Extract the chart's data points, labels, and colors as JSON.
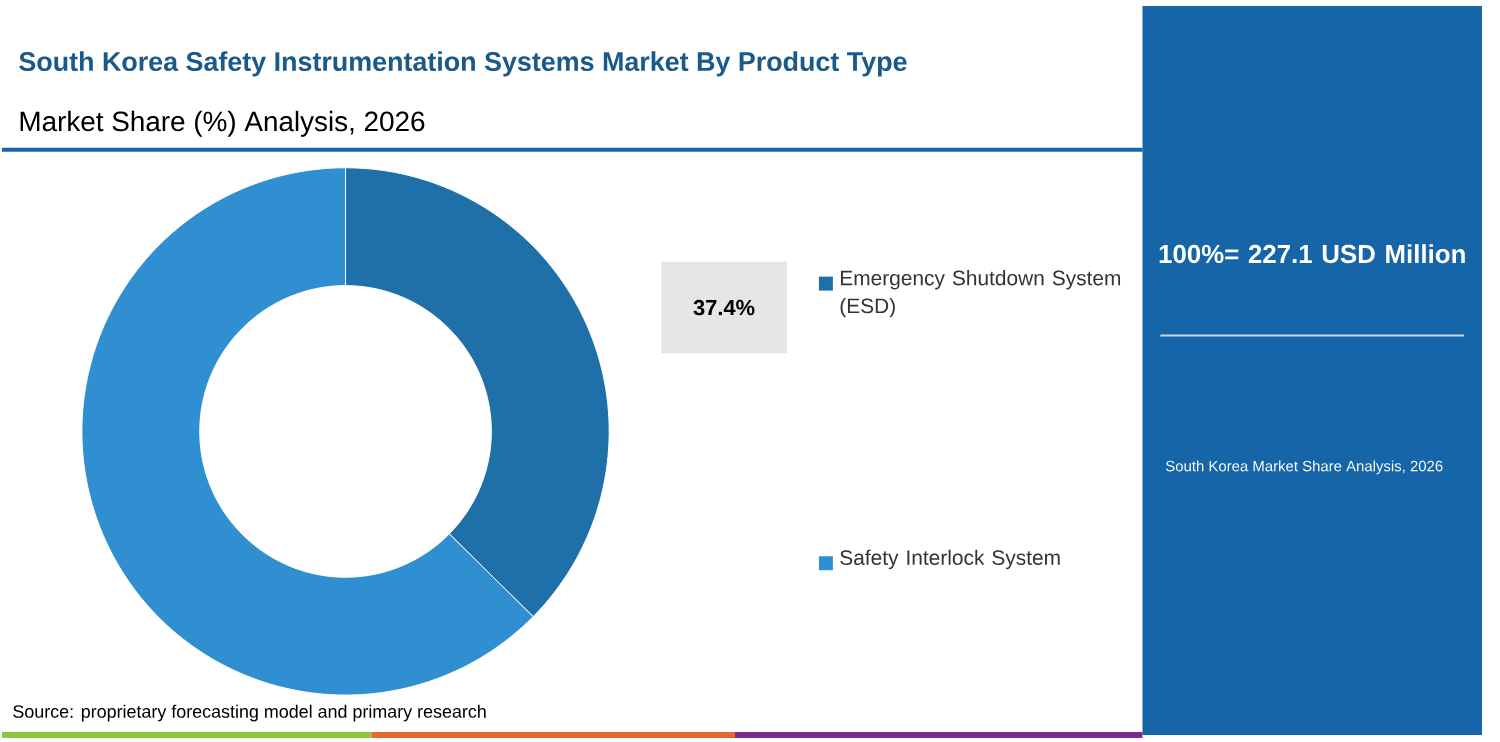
{
  "chart_data": {
    "type": "donut",
    "title": "South Korea Safety Instrumentation Systems Market By Product Type",
    "subtitle": "Market Share (%) Analysis, 2026",
    "categories": [
      "Emergency Shutdown System (ESD)",
      "Safety Interlock System"
    ],
    "values": [
      37.4,
      62.6
    ],
    "colors": [
      "#1f6fa8",
      "#2f8fd1"
    ],
    "value_labels": [
      "37.4%",
      null
    ],
    "legend": "right",
    "annotations": [
      "100%= 227.1 USD Million",
      "South Korea Market Share Analysis, 2026",
      "Source: proprietary forecasting model and primary research"
    ]
  }
}
